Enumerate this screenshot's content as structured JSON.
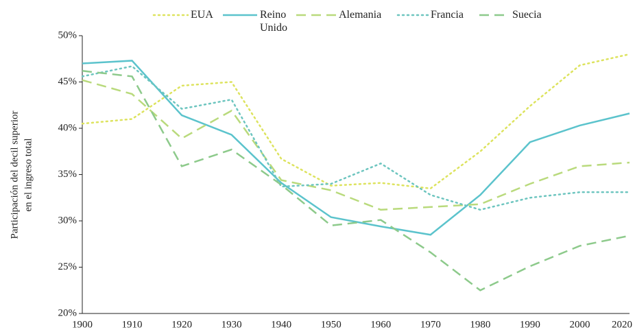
{
  "chart_data": {
    "type": "line",
    "ylabel": [
      "Participación del decil superior",
      "en el ingreso total"
    ],
    "categories": [
      "1900",
      "1910",
      "1920",
      "1930",
      "1940",
      "1950",
      "1960",
      "1970",
      "1980",
      "1990",
      "2000",
      "2020"
    ],
    "ylim": [
      20,
      50
    ],
    "yticks": [
      {
        "value": 20,
        "label": "20%"
      },
      {
        "value": 25,
        "label": "25%"
      },
      {
        "value": 30,
        "label": "30%"
      },
      {
        "value": 35,
        "label": "35%"
      },
      {
        "value": 40,
        "label": "40%"
      },
      {
        "value": 45,
        "label": "45%"
      },
      {
        "value": 50,
        "label": "50%"
      }
    ],
    "legend": "top",
    "series": [
      {
        "name": "EUA",
        "color": "#dde35e",
        "style": "dotted",
        "values": [
          40.5,
          41.0,
          44.6,
          45.0,
          36.7,
          33.8,
          34.1,
          33.5,
          37.5,
          42.4,
          46.8,
          48.0
        ]
      },
      {
        "name": "Reino Unido",
        "color": "#5bc3cc",
        "style": "solid",
        "values": [
          47.0,
          47.3,
          41.4,
          39.3,
          34.1,
          30.4,
          29.4,
          28.5,
          32.8,
          38.5,
          40.3,
          41.6
        ]
      },
      {
        "name": "Alemania",
        "color": "#b9da7c",
        "style": "dashed",
        "values": [
          45.2,
          43.7,
          38.9,
          41.9,
          34.4,
          33.3,
          31.2,
          31.5,
          31.8,
          34.0,
          35.9,
          36.3
        ]
      },
      {
        "name": "Francia",
        "color": "#6dc5bf",
        "style": "dotted",
        "values": [
          45.6,
          46.7,
          42.1,
          43.1,
          33.7,
          34.0,
          36.2,
          32.8,
          31.2,
          32.5,
          33.1,
          33.1
        ]
      },
      {
        "name": "Suecia",
        "color": "#8dca8b",
        "style": "dashed",
        "values": [
          46.2,
          45.6,
          35.9,
          37.7,
          33.9,
          29.5,
          30.1,
          26.6,
          22.5,
          25.1,
          27.3,
          28.4
        ]
      }
    ]
  }
}
